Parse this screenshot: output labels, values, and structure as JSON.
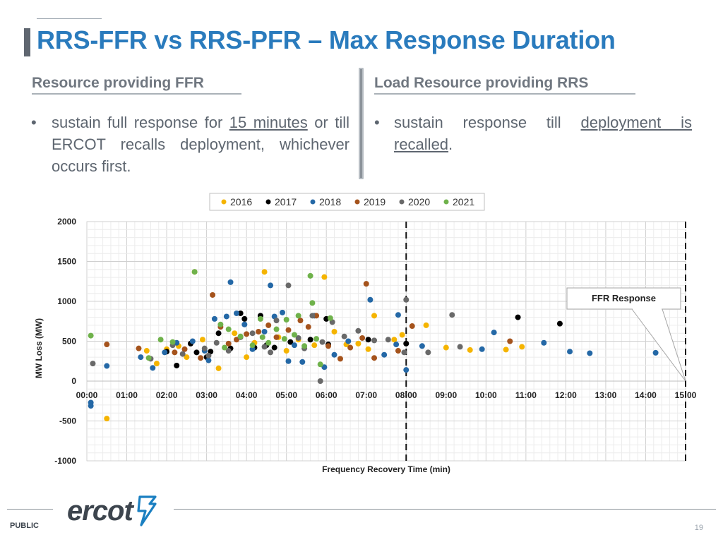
{
  "slide": {
    "title": "RRS-FFR vs RRS-PFR – Max Response Duration",
    "left_header": "Resource providing FFR",
    "right_header": "Load Resource providing RRS",
    "left_bullet": {
      "prefix": "sustain full response for ",
      "underlined": "15 minutes",
      "suffix": " or till ERCOT recalls deployment, whichever occurs first."
    },
    "right_bullet": {
      "prefix": "sustain response till ",
      "underlined": "deployment is recalled",
      "suffix": "."
    },
    "bullet_glyph": "•",
    "footer_label": "PUBLIC",
    "page_number": "19",
    "logo_text": "ercot"
  },
  "colors": {
    "title": "#2a7bbd",
    "2016": "#f5b400",
    "2017": "#000000",
    "2018": "#2468a6",
    "2019": "#a5531c",
    "2020": "#696969",
    "2021": "#6fb24b",
    "logo_accent": "#1a7fc1"
  },
  "chart_data": {
    "type": "scatter",
    "xlabel": "Frequency Recovery Time (min)",
    "ylabel": "MW Loss (MW)",
    "x_ticks": [
      "00:00",
      "01:00",
      "02:00",
      "03:00",
      "04:00",
      "05:00",
      "06:00",
      "07:00",
      "08:00",
      "09:00",
      "10:00",
      "11:00",
      "12:00",
      "13:00",
      "14:00",
      "15:00"
    ],
    "y_ticks": [
      "2000",
      "1500",
      "1000",
      "500",
      "0",
      "-500",
      "-1000"
    ],
    "xlim": [
      0,
      15
    ],
    "ylim": [
      -1000,
      2000
    ],
    "legend_position": "top",
    "grid": true,
    "vertical_markers": [
      8,
      15
    ],
    "annotation": {
      "text": "FFR Response",
      "points_to": [
        15,
        0
      ]
    },
    "series": [
      {
        "name": "2016",
        "points": [
          [
            2.7,
            1370
          ],
          [
            4.45,
            1370
          ],
          [
            5.95,
            1305
          ],
          [
            7.2,
            820
          ],
          [
            8.5,
            700
          ],
          [
            1.5,
            380
          ],
          [
            2.0,
            400
          ],
          [
            2.3,
            440
          ],
          [
            3.7,
            600
          ],
          [
            4.2,
            480
          ],
          [
            4.8,
            550
          ],
          [
            5.3,
            520
          ],
          [
            5.7,
            450
          ],
          [
            6.2,
            620
          ],
          [
            6.8,
            470
          ],
          [
            7.7,
            520
          ],
          [
            7.9,
            580
          ],
          [
            9.6,
            390
          ],
          [
            10.5,
            395
          ],
          [
            10.9,
            430
          ],
          [
            9.0,
            420
          ],
          [
            1.75,
            220
          ],
          [
            2.5,
            300
          ],
          [
            3.3,
            160
          ],
          [
            0.5,
            -470
          ],
          [
            4.0,
            300
          ],
          [
            5.0,
            380
          ],
          [
            6.5,
            460
          ],
          [
            7.05,
            400
          ],
          [
            2.9,
            520
          ]
        ]
      },
      {
        "name": "2017",
        "points": [
          [
            3.85,
            850
          ],
          [
            4.35,
            820
          ],
          [
            6.0,
            780
          ],
          [
            5.1,
            490
          ],
          [
            4.5,
            450
          ],
          [
            3.3,
            600
          ],
          [
            2.75,
            360
          ],
          [
            2.6,
            470
          ],
          [
            3.0,
            300
          ],
          [
            3.6,
            410
          ],
          [
            4.2,
            420
          ],
          [
            2.0,
            370
          ],
          [
            7.05,
            520
          ],
          [
            8.0,
            470
          ],
          [
            10.8,
            800
          ],
          [
            11.85,
            720
          ],
          [
            2.25,
            195
          ],
          [
            3.1,
            370
          ],
          [
            4.7,
            420
          ],
          [
            5.6,
            520
          ],
          [
            6.05,
            460
          ],
          [
            3.95,
            780
          ]
        ]
      },
      {
        "name": "2018",
        "points": [
          [
            0.1,
            -270
          ],
          [
            0.1,
            -310
          ],
          [
            0.5,
            190
          ],
          [
            1.35,
            300
          ],
          [
            1.65,
            165
          ],
          [
            1.95,
            360
          ],
          [
            2.25,
            480
          ],
          [
            2.65,
            500
          ],
          [
            3.05,
            260
          ],
          [
            3.2,
            780
          ],
          [
            3.5,
            810
          ],
          [
            3.75,
            850
          ],
          [
            3.95,
            710
          ],
          [
            4.15,
            400
          ],
          [
            4.45,
            620
          ],
          [
            4.6,
            1200
          ],
          [
            4.7,
            810
          ],
          [
            5.05,
            250
          ],
          [
            5.4,
            240
          ],
          [
            5.7,
            820
          ],
          [
            5.95,
            175
          ],
          [
            6.2,
            330
          ],
          [
            6.55,
            500
          ],
          [
            7.1,
            1020
          ],
          [
            7.45,
            330
          ],
          [
            7.75,
            460
          ],
          [
            7.8,
            830
          ],
          [
            8.0,
            140
          ],
          [
            8.4,
            440
          ],
          [
            9.9,
            400
          ],
          [
            10.2,
            610
          ],
          [
            11.45,
            480
          ],
          [
            12.1,
            370
          ],
          [
            12.6,
            350
          ],
          [
            14.25,
            355
          ],
          [
            3.6,
            1240
          ],
          [
            2.95,
            380
          ],
          [
            4.9,
            860
          ],
          [
            5.2,
            450
          ]
        ]
      },
      {
        "name": "2019",
        "points": [
          [
            0.5,
            460
          ],
          [
            1.3,
            410
          ],
          [
            2.2,
            360
          ],
          [
            2.85,
            290
          ],
          [
            3.15,
            1080
          ],
          [
            3.35,
            680
          ],
          [
            3.75,
            520
          ],
          [
            4.0,
            590
          ],
          [
            4.3,
            620
          ],
          [
            4.55,
            700
          ],
          [
            4.75,
            550
          ],
          [
            5.05,
            640
          ],
          [
            5.35,
            760
          ],
          [
            5.75,
            820
          ],
          [
            6.05,
            440
          ],
          [
            6.35,
            280
          ],
          [
            6.6,
            420
          ],
          [
            7.0,
            1220
          ],
          [
            7.2,
            290
          ],
          [
            7.8,
            380
          ],
          [
            8.15,
            690
          ],
          [
            10.6,
            500
          ],
          [
            2.45,
            400
          ],
          [
            3.55,
            470
          ],
          [
            5.55,
            680
          ],
          [
            6.9,
            540
          ]
        ]
      },
      {
        "name": "2020",
        "points": [
          [
            0.15,
            220
          ],
          [
            1.6,
            280
          ],
          [
            2.4,
            340
          ],
          [
            2.95,
            410
          ],
          [
            3.25,
            480
          ],
          [
            3.55,
            380
          ],
          [
            3.85,
            550
          ],
          [
            4.15,
            600
          ],
          [
            4.45,
            430
          ],
          [
            4.75,
            760
          ],
          [
            5.05,
            1200
          ],
          [
            5.3,
            540
          ],
          [
            5.65,
            820
          ],
          [
            5.9,
            490
          ],
          [
            6.15,
            740
          ],
          [
            6.45,
            560
          ],
          [
            6.8,
            630
          ],
          [
            7.2,
            510
          ],
          [
            7.55,
            520
          ],
          [
            7.95,
            360
          ],
          [
            8.0,
            1020
          ],
          [
            8.55,
            360
          ],
          [
            9.15,
            830
          ],
          [
            9.35,
            430
          ],
          [
            5.85,
            0
          ],
          [
            2.15,
            450
          ],
          [
            3.05,
            320
          ],
          [
            4.6,
            360
          ],
          [
            5.45,
            410
          ]
        ]
      },
      {
        "name": "2021",
        "points": [
          [
            0.1,
            570
          ],
          [
            1.55,
            290
          ],
          [
            1.85,
            520
          ],
          [
            2.15,
            490
          ],
          [
            2.7,
            1370
          ],
          [
            3.35,
            710
          ],
          [
            3.55,
            650
          ],
          [
            3.85,
            560
          ],
          [
            4.15,
            450
          ],
          [
            4.35,
            780
          ],
          [
            4.55,
            480
          ],
          [
            4.75,
            650
          ],
          [
            5.0,
            770
          ],
          [
            5.2,
            580
          ],
          [
            5.45,
            440
          ],
          [
            5.6,
            1320
          ],
          [
            5.65,
            980
          ],
          [
            5.75,
            530
          ],
          [
            5.85,
            210
          ],
          [
            6.1,
            790
          ],
          [
            4.4,
            550
          ],
          [
            5.3,
            820
          ],
          [
            3.45,
            420
          ],
          [
            4.95,
            530
          ]
        ]
      }
    ]
  }
}
